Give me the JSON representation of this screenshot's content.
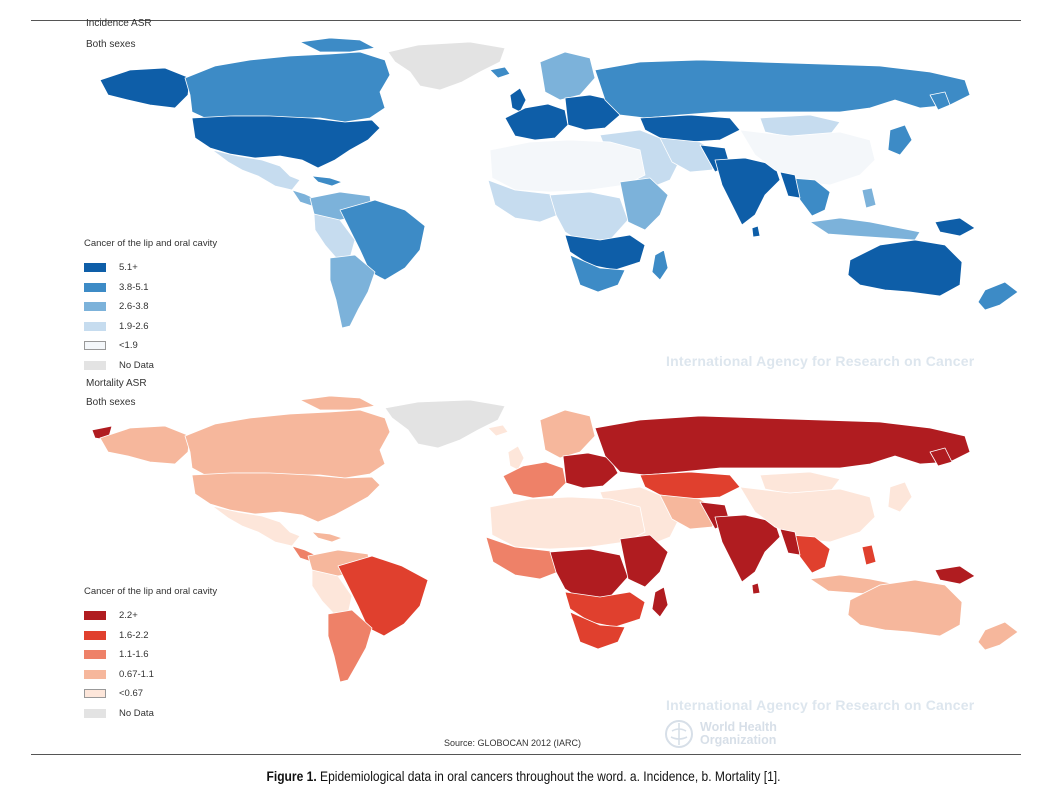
{
  "incidence": {
    "title": "Incidence ASR",
    "subtitle": "Both sexes",
    "legend_title": "Cancer of the lip and oral cavity",
    "legend": [
      {
        "label": "5.1+",
        "color": "#0e5ea8"
      },
      {
        "label": "3.8-5.1",
        "color": "#3d8bc6"
      },
      {
        "label": "2.6-3.8",
        "color": "#7cb2da"
      },
      {
        "label": "1.9-2.6",
        "color": "#c6dcef"
      },
      {
        "label": "<1.9",
        "color": "#f4f7fa"
      },
      {
        "label": "No Data",
        "color": "#e3e3e3"
      }
    ],
    "watermark": "International Agency for Research on Cancer"
  },
  "mortality": {
    "title": "Mortality ASR",
    "subtitle": "Both sexes",
    "legend_title": "Cancer of the lip and oral cavity",
    "legend": [
      {
        "label": "2.2+",
        "color": "#b01c20"
      },
      {
        "label": "1.6-2.2",
        "color": "#e0402e"
      },
      {
        "label": "1.1-1.6",
        "color": "#ee8168"
      },
      {
        "label": "0.67-1.1",
        "color": "#f6b79c"
      },
      {
        "label": "<0.67",
        "color": "#fde6da"
      },
      {
        "label": "No Data",
        "color": "#e3e3e3"
      }
    ],
    "watermark": "International Agency for Research on Cancer"
  },
  "source": "Source: GLOBOCAN 2012 (IARC)",
  "who": {
    "line1": "World Health",
    "line2": "Organization"
  },
  "caption": {
    "label": "Figure 1.",
    "text": " Epidemiological data in oral cancers throughout the word. a. Incidence, b. Mortality [1]."
  }
}
